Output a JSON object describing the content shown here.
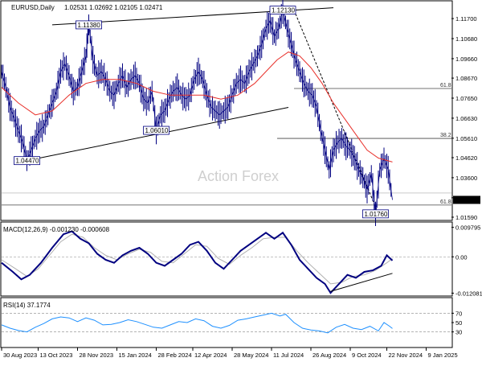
{
  "chart_data": [
    {
      "type": "candlestick",
      "title": "EURUSD,Daily",
      "ohlc_label": "1.02531 1.02692 1.02105 1.02471",
      "watermark": "Action Forex",
      "ylim": [
        1.0159,
        1.124
      ],
      "y_ticks": [
        "1.11700",
        "1.10680",
        "1.09660",
        "1.08670",
        "1.07650",
        "1.06630",
        "1.05610",
        "1.04620",
        "1.03600",
        "1.02580",
        "1.01590"
      ],
      "y_tick_values": [
        1.117,
        1.1068,
        1.0966,
        1.0867,
        1.0765,
        1.0663,
        1.0561,
        1.0462,
        1.036,
        1.0258,
        1.0159
      ],
      "last_price": "1.02471",
      "last_price_value": 1.02471,
      "grid": false,
      "legend": "none",
      "price_path": [
        [
          0,
          1.09
        ],
        [
          1.5,
          1.082
        ],
        [
          3,
          1.072
        ],
        [
          4.5,
          1.066
        ],
        [
          6,
          1.06
        ],
        [
          7.5,
          1.054
        ],
        [
          9,
          1.0447
        ],
        [
          10.5,
          1.05
        ],
        [
          12,
          1.056
        ],
        [
          13.5,
          1.06
        ],
        [
          15,
          1.062
        ],
        [
          16.5,
          1.068
        ],
        [
          18,
          1.074
        ],
        [
          19.5,
          1.08
        ],
        [
          21,
          1.09
        ],
        [
          22.5,
          1.094
        ],
        [
          24,
          1.088
        ],
        [
          25.5,
          1.08
        ],
        [
          27,
          1.082
        ],
        [
          28.5,
          1.09
        ],
        [
          30,
          1.098
        ],
        [
          31,
          1.1138
        ],
        [
          32.5,
          1.096
        ],
        [
          34,
          1.088
        ],
        [
          35.5,
          1.09
        ],
        [
          37,
          1.086
        ],
        [
          38.5,
          1.08
        ],
        [
          40,
          1.078
        ],
        [
          41.5,
          1.084
        ],
        [
          43,
          1.088
        ],
        [
          44.5,
          1.082
        ],
        [
          46,
          1.086
        ],
        [
          47.5,
          1.088
        ],
        [
          49,
          1.084
        ],
        [
          50.5,
          1.076
        ],
        [
          52,
          1.074
        ],
        [
          53.5,
          1.08
        ],
        [
          55,
          1.0601
        ],
        [
          56.5,
          1.068
        ],
        [
          58,
          1.07
        ],
        [
          59.5,
          1.076
        ],
        [
          61,
          1.08
        ],
        [
          62.5,
          1.082
        ],
        [
          64,
          1.078
        ],
        [
          65.5,
          1.076
        ],
        [
          67,
          1.078
        ],
        [
          68.5,
          1.086
        ],
        [
          70,
          1.09
        ],
        [
          71.5,
          1.086
        ],
        [
          73,
          1.078
        ],
        [
          74.5,
          1.072
        ],
        [
          76,
          1.07
        ],
        [
          77.5,
          1.068
        ],
        [
          79,
          1.07
        ],
        [
          80.5,
          1.072
        ],
        [
          82,
          1.078
        ],
        [
          83.5,
          1.084
        ],
        [
          85,
          1.086
        ],
        [
          86.5,
          1.084
        ],
        [
          88,
          1.09
        ],
        [
          89.5,
          1.094
        ],
        [
          91,
          1.098
        ],
        [
          92.5,
          1.104
        ],
        [
          94,
          1.112
        ],
        [
          95.5,
          1.116
        ],
        [
          97,
          1.108
        ],
        [
          98.5,
          1.112
        ],
        [
          100,
          1.1213
        ],
        [
          101.5,
          1.112
        ],
        [
          103,
          1.104
        ],
        [
          104.5,
          1.096
        ],
        [
          106,
          1.09
        ],
        [
          107.5,
          1.084
        ],
        [
          109,
          1.08
        ],
        [
          110.5,
          1.078
        ],
        [
          112,
          1.072
        ],
        [
          113.5,
          1.06
        ],
        [
          115,
          1.05
        ],
        [
          116.5,
          1.04
        ],
        [
          118,
          1.05
        ],
        [
          119.5,
          1.054
        ],
        [
          121,
          1.056
        ],
        [
          122.5,
          1.052
        ],
        [
          124,
          1.05
        ],
        [
          125.5,
          1.046
        ],
        [
          127,
          1.04
        ],
        [
          128.5,
          1.036
        ],
        [
          130,
          1.03
        ],
        [
          131.5,
          1.038
        ],
        [
          133,
          1.0176
        ],
        [
          134.5,
          1.04
        ],
        [
          136,
          1.046
        ],
        [
          137.5,
          1.04
        ],
        [
          139,
          1.02471
        ]
      ],
      "sma_path": [
        [
          0,
          1.082
        ],
        [
          6,
          1.074
        ],
        [
          12,
          1.068
        ],
        [
          18,
          1.07
        ],
        [
          24,
          1.078
        ],
        [
          30,
          1.084
        ],
        [
          36,
          1.086
        ],
        [
          42,
          1.086
        ],
        [
          48,
          1.084
        ],
        [
          54,
          1.08
        ],
        [
          60,
          1.078
        ],
        [
          66,
          1.078
        ],
        [
          72,
          1.078
        ],
        [
          78,
          1.076
        ],
        [
          84,
          1.078
        ],
        [
          90,
          1.084
        ],
        [
          94,
          1.09
        ],
        [
          98,
          1.096
        ],
        [
          102,
          1.1
        ],
        [
          106,
          1.098
        ],
        [
          110,
          1.092
        ],
        [
          114,
          1.084
        ],
        [
          118,
          1.074
        ],
        [
          122,
          1.066
        ],
        [
          126,
          1.058
        ],
        [
          130,
          1.05
        ],
        [
          134,
          1.046
        ],
        [
          139,
          1.044
        ]
      ],
      "trendlines": [
        {
          "from": [
            18,
            1.1138
          ],
          "to": [
            118,
            1.1225
          ]
        },
        {
          "from": [
            9,
            1.0447
          ],
          "to": [
            102,
            1.0718
          ]
        },
        {
          "from": [
            104,
            1.1213
          ],
          "to": [
            134,
            1.0176
          ],
          "dashed": true
        }
      ],
      "fib_levels": [
        {
          "label": "61.8",
          "value": 1.0814,
          "from_x": 104
        },
        {
          "label": "38.2",
          "value": 1.056,
          "from_x": 98
        },
        {
          "label": "61.8",
          "value": 1.0221,
          "from_x": 0
        }
      ],
      "extra_hline": 1.0282,
      "price_labels": [
        {
          "text": "1.04470",
          "x": 9,
          "y": 1.0447
        },
        {
          "text": "1.11380",
          "x": 31,
          "y": 1.1138
        },
        {
          "text": "1.06010",
          "x": 55,
          "y": 1.0601
        },
        {
          "text": "1.12130",
          "x": 100,
          "y": 1.1213
        },
        {
          "text": "1.01760",
          "x": 133,
          "y": 1.0176
        }
      ]
    },
    {
      "type": "line",
      "title": "MACD(12,26,9) -0.001230 -0.000608",
      "ylim": [
        -0.0125,
        0.0105
      ],
      "y_ticks": [
        "0.009795",
        "0.00",
        "-0.012081"
      ],
      "y_tick_values": [
        0.009795,
        0.0,
        -0.012081
      ],
      "series": [
        {
          "name": "MACD",
          "values": [
            [
              0,
              -0.002
            ],
            [
              4,
              -0.005
            ],
            [
              7,
              -0.0075
            ],
            [
              10,
              -0.006
            ],
            [
              14,
              -0.002
            ],
            [
              18,
              0.003
            ],
            [
              22,
              0.0075
            ],
            [
              25,
              0.0085
            ],
            [
              28,
              0.006
            ],
            [
              31,
              0.0045
            ],
            [
              34,
              0.001
            ],
            [
              37,
              -0.001
            ],
            [
              40,
              -0.002
            ],
            [
              43,
              0.0005
            ],
            [
              46,
              0.002
            ],
            [
              49,
              0.003
            ],
            [
              52,
              0.001
            ],
            [
              55,
              -0.002
            ],
            [
              58,
              -0.003
            ],
            [
              61,
              -0.001
            ],
            [
              64,
              0.001
            ],
            [
              67,
              0.004
            ],
            [
              70,
              0.005
            ],
            [
              73,
              0.002
            ],
            [
              76,
              -0.002
            ],
            [
              79,
              -0.004
            ],
            [
              82,
              -0.001
            ],
            [
              85,
              0.002
            ],
            [
              88,
              0.004
            ],
            [
              91,
              0.006
            ],
            [
              94,
              0.008
            ],
            [
              97,
              0.006
            ],
            [
              100,
              0.008
            ],
            [
              103,
              0.004
            ],
            [
              106,
              -0.001
            ],
            [
              109,
              -0.004
            ],
            [
              112,
              -0.007
            ],
            [
              115,
              -0.009
            ],
            [
              117,
              -0.012
            ],
            [
              120,
              -0.009
            ],
            [
              123,
              -0.006
            ],
            [
              126,
              -0.007
            ],
            [
              129,
              -0.005
            ],
            [
              132,
              -0.0045
            ],
            [
              135,
              -0.003
            ],
            [
              137,
              0.0005
            ],
            [
              139,
              -0.00123
            ]
          ]
        },
        {
          "name": "Signal",
          "values": [
            [
              0,
              -0.001
            ],
            [
              5,
              -0.004
            ],
            [
              9,
              -0.0065
            ],
            [
              13,
              -0.004
            ],
            [
              17,
              0.0005
            ],
            [
              21,
              0.005
            ],
            [
              25,
              0.0075
            ],
            [
              29,
              0.0065
            ],
            [
              33,
              0.003
            ],
            [
              37,
              0.0005
            ],
            [
              41,
              -0.001
            ],
            [
              45,
              0.001
            ],
            [
              49,
              0.0025
            ],
            [
              53,
              0.0015
            ],
            [
              57,
              -0.0015
            ],
            [
              61,
              -0.002
            ],
            [
              65,
              0.001
            ],
            [
              69,
              0.004
            ],
            [
              73,
              0.0035
            ],
            [
              77,
              -0.0005
            ],
            [
              81,
              -0.0025
            ],
            [
              85,
              0.0005
            ],
            [
              89,
              0.003
            ],
            [
              93,
              0.006
            ],
            [
              97,
              0.0065
            ],
            [
              101,
              0.0065
            ],
            [
              105,
              0.002
            ],
            [
              109,
              -0.002
            ],
            [
              113,
              -0.0055
            ],
            [
              117,
              -0.009
            ],
            [
              121,
              -0.0085
            ],
            [
              125,
              -0.0065
            ],
            [
              129,
              -0.006
            ],
            [
              133,
              -0.0045
            ],
            [
              137,
              -0.002
            ],
            [
              139,
              -0.000608
            ]
          ]
        }
      ],
      "trendline": {
        "from": [
          117,
          -0.0115
        ],
        "to": [
          139,
          -0.0055
        ]
      }
    },
    {
      "type": "line",
      "title": "RSI(14) 37.1774",
      "ylim": [
        0,
        100
      ],
      "y_ticks": [
        "70",
        "50",
        "30"
      ],
      "y_tick_values": [
        70,
        50,
        30
      ],
      "reference_lines": [
        70,
        30
      ],
      "series": [
        {
          "name": "RSI",
          "values": [
            [
              0,
              45
            ],
            [
              3,
              38
            ],
            [
              6,
              33
            ],
            [
              9,
              30
            ],
            [
              12,
              40
            ],
            [
              15,
              48
            ],
            [
              18,
              58
            ],
            [
              21,
              62
            ],
            [
              24,
              60
            ],
            [
              27,
              52
            ],
            [
              30,
              60
            ],
            [
              33,
              55
            ],
            [
              36,
              45
            ],
            [
              39,
              46
            ],
            [
              42,
              50
            ],
            [
              45,
              56
            ],
            [
              48,
              52
            ],
            [
              51,
              46
            ],
            [
              54,
              40
            ],
            [
              57,
              38
            ],
            [
              60,
              45
            ],
            [
              63,
              52
            ],
            [
              66,
              50
            ],
            [
              69,
              58
            ],
            [
              72,
              54
            ],
            [
              75,
              42
            ],
            [
              78,
              38
            ],
            [
              81,
              44
            ],
            [
              84,
              55
            ],
            [
              87,
              58
            ],
            [
              90,
              62
            ],
            [
              93,
              66
            ],
            [
              96,
              70
            ],
            [
              99,
              64
            ],
            [
              101,
              68
            ],
            [
              104,
              50
            ],
            [
              107,
              38
            ],
            [
              110,
              34
            ],
            [
              113,
              32
            ],
            [
              116,
              28
            ],
            [
              119,
              40
            ],
            [
              122,
              46
            ],
            [
              125,
              38
            ],
            [
              128,
              35
            ],
            [
              131,
              42
            ],
            [
              134,
              32
            ],
            [
              136,
              50
            ],
            [
              138,
              42
            ],
            [
              139,
              37.1774
            ]
          ]
        }
      ]
    }
  ],
  "x_axis": {
    "labels": [
      "30 Aug 2023",
      "13 Oct 2023",
      "28 Nov 2023",
      "15 Jan 2024",
      "28 Feb 2024",
      "12 Apr 2024",
      "28 May 2024",
      "11 Jul 2024",
      "26 Aug 2024",
      "9 Oct 2024",
      "22 Nov 2024",
      "9 Jan 2025"
    ],
    "positions": [
      0,
      13,
      27,
      41,
      55,
      68,
      82,
      96,
      110,
      124,
      137,
      151
    ],
    "domain": [
      0,
      160
    ]
  },
  "colors": {
    "price": "#000080",
    "sma": "#e8302a",
    "macd": "#000080",
    "signal": "#b0b0b0",
    "rsi": "#1e90ff",
    "trendline": "#000000",
    "fib": "#444444",
    "ref": "#888888"
  }
}
